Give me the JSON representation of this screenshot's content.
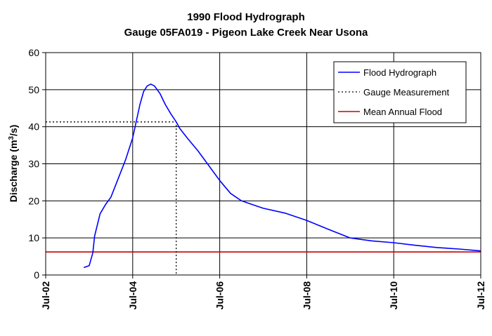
{
  "chart_data": {
    "type": "line",
    "title": "1990 Flood Hydrograph",
    "subtitle": "Gauge 05FA019 - Pigeon Lake Creek Near Usona",
    "ylabel_main": "Discharge (m",
    "ylabel_sup": "3",
    "ylabel_tail": "/s)",
    "ylim": [
      0,
      60
    ],
    "yticks": [
      0,
      10,
      20,
      30,
      40,
      50,
      60
    ],
    "xlim": [
      "1990-07-02",
      "1990-07-12"
    ],
    "xticks": [
      "Jul-02",
      "Jul-04",
      "Jul-06",
      "Jul-08",
      "Jul-10",
      "Jul-12"
    ],
    "xtick_dates": [
      "1990-07-02",
      "1990-07-04",
      "1990-07-06",
      "1990-07-08",
      "1990-07-10",
      "1990-07-12"
    ],
    "grid": true,
    "legend_position": "top-right",
    "colors": {
      "hydrograph": "#0000ff",
      "mean_flood": "#cc0000",
      "gauge": "#000000"
    },
    "series": [
      {
        "name": "Flood Hydrograph",
        "style": "solid",
        "color": "#0000ff",
        "points": [
          [
            "1990-07-02 21:00",
            2.0
          ],
          [
            "1990-07-03 00:00",
            2.5
          ],
          [
            "1990-07-03 02:00",
            6.0
          ],
          [
            "1990-07-03 03:00",
            10.5
          ],
          [
            "1990-07-03 06:00",
            16.5
          ],
          [
            "1990-07-03 09:00",
            19.0
          ],
          [
            "1990-07-03 12:00",
            21.0
          ],
          [
            "1990-07-03 16:00",
            26.0
          ],
          [
            "1990-07-03 20:00",
            31.0
          ],
          [
            "1990-07-04 00:00",
            37.0
          ],
          [
            "1990-07-04 04:00",
            46.0
          ],
          [
            "1990-07-04 06:00",
            49.5
          ],
          [
            "1990-07-04 08:00",
            51.0
          ],
          [
            "1990-07-04 10:00",
            51.5
          ],
          [
            "1990-07-04 12:00",
            51.0
          ],
          [
            "1990-07-04 15:00",
            49.0
          ],
          [
            "1990-07-04 18:00",
            46.0
          ],
          [
            "1990-07-04 21:00",
            43.5
          ],
          [
            "1990-07-05 00:00",
            41.3
          ],
          [
            "1990-07-05 02:00",
            39.5
          ],
          [
            "1990-07-05 06:00",
            37.0
          ],
          [
            "1990-07-05 12:00",
            33.5
          ],
          [
            "1990-07-05 18:00",
            29.5
          ],
          [
            "1990-07-06 00:00",
            25.5
          ],
          [
            "1990-07-06 06:00",
            22.0
          ],
          [
            "1990-07-06 12:00",
            20.0
          ],
          [
            "1990-07-06 18:00",
            19.0
          ],
          [
            "1990-07-07 00:00",
            18.0
          ],
          [
            "1990-07-07 12:00",
            16.7
          ],
          [
            "1990-07-08 00:00",
            14.7
          ],
          [
            "1990-07-08 12:00",
            12.3
          ],
          [
            "1990-07-09 00:00",
            10.0
          ],
          [
            "1990-07-09 12:00",
            9.2
          ],
          [
            "1990-07-10 00:00",
            8.7
          ],
          [
            "1990-07-10 12:00",
            8.0
          ],
          [
            "1990-07-11 00:00",
            7.4
          ],
          [
            "1990-07-11 12:00",
            7.0
          ],
          [
            "1990-07-12 00:00",
            6.5
          ]
        ]
      },
      {
        "name": "Gauge Measurement",
        "style": "dotted",
        "color": "#000000",
        "points": [
          [
            "1990-07-02 00:00",
            41.3
          ],
          [
            "1990-07-05 00:00",
            41.3
          ],
          [
            "1990-07-05 00:00",
            0
          ]
        ]
      },
      {
        "name": "Mean Annual Flood",
        "style": "solid",
        "color": "#cc0000",
        "points": [
          [
            "1990-07-02 00:00",
            6.2
          ],
          [
            "1990-07-12 00:00",
            6.2
          ]
        ]
      }
    ]
  }
}
